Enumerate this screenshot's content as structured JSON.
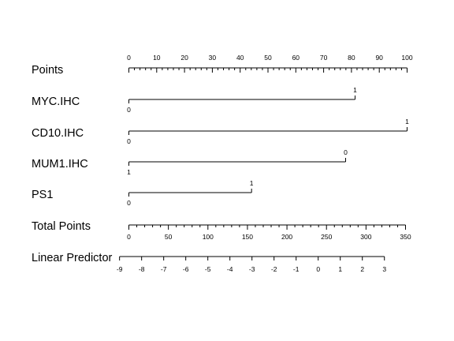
{
  "chart_data": {
    "type": "nomogram",
    "points_axis": {
      "label": "Points",
      "min": 0,
      "max": 100,
      "major_ticks": [
        0,
        10,
        20,
        30,
        40,
        50,
        60,
        70,
        80,
        90,
        100
      ],
      "minor_step": 2
    },
    "predictors": [
      {
        "label": "MYC.IHC",
        "levels": [
          {
            "value": "0",
            "points": 0
          },
          {
            "value": "1",
            "points": 81.3
          }
        ]
      },
      {
        "label": "CD10.IHC",
        "levels": [
          {
            "value": "0",
            "points": 0
          },
          {
            "value": "1",
            "points": 100
          }
        ]
      },
      {
        "label": "MUM1.IHC",
        "levels": [
          {
            "value": "1",
            "points": 0
          },
          {
            "value": "0",
            "points": 77.9
          }
        ]
      },
      {
        "label": "PS1",
        "levels": [
          {
            "value": "0",
            "points": 0
          },
          {
            "value": "1",
            "points": 44.1
          }
        ]
      }
    ],
    "total_points_axis": {
      "label": "Total Points",
      "min": 0,
      "max": 350,
      "major_ticks": [
        0,
        50,
        100,
        150,
        200,
        250,
        300,
        350
      ],
      "minor_step": 10
    },
    "linear_predictor_axis": {
      "label": "Linear Predictor",
      "total_points_at_min": -11.8,
      "total_points_at_max": 323.3,
      "major_ticks": [
        -9,
        -8,
        -7,
        -6,
        -5,
        -4,
        -3,
        -2,
        -1,
        0,
        1,
        2,
        3
      ]
    }
  }
}
